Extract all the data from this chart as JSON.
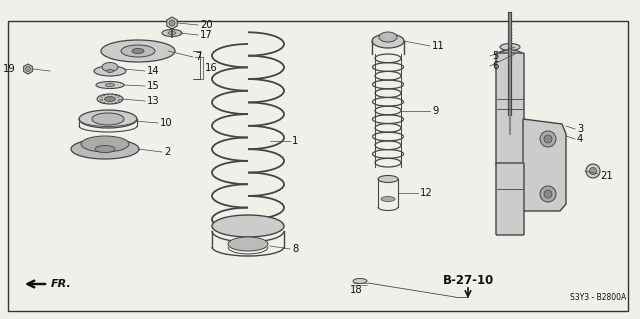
{
  "bg_color": "#f0f0eb",
  "border_color": "#333333",
  "line_color": "#444444",
  "text_color": "#111111",
  "page_ref": "B-27-10",
  "series_ref": "S3Y3 - B2800A",
  "fr_label": "FR."
}
